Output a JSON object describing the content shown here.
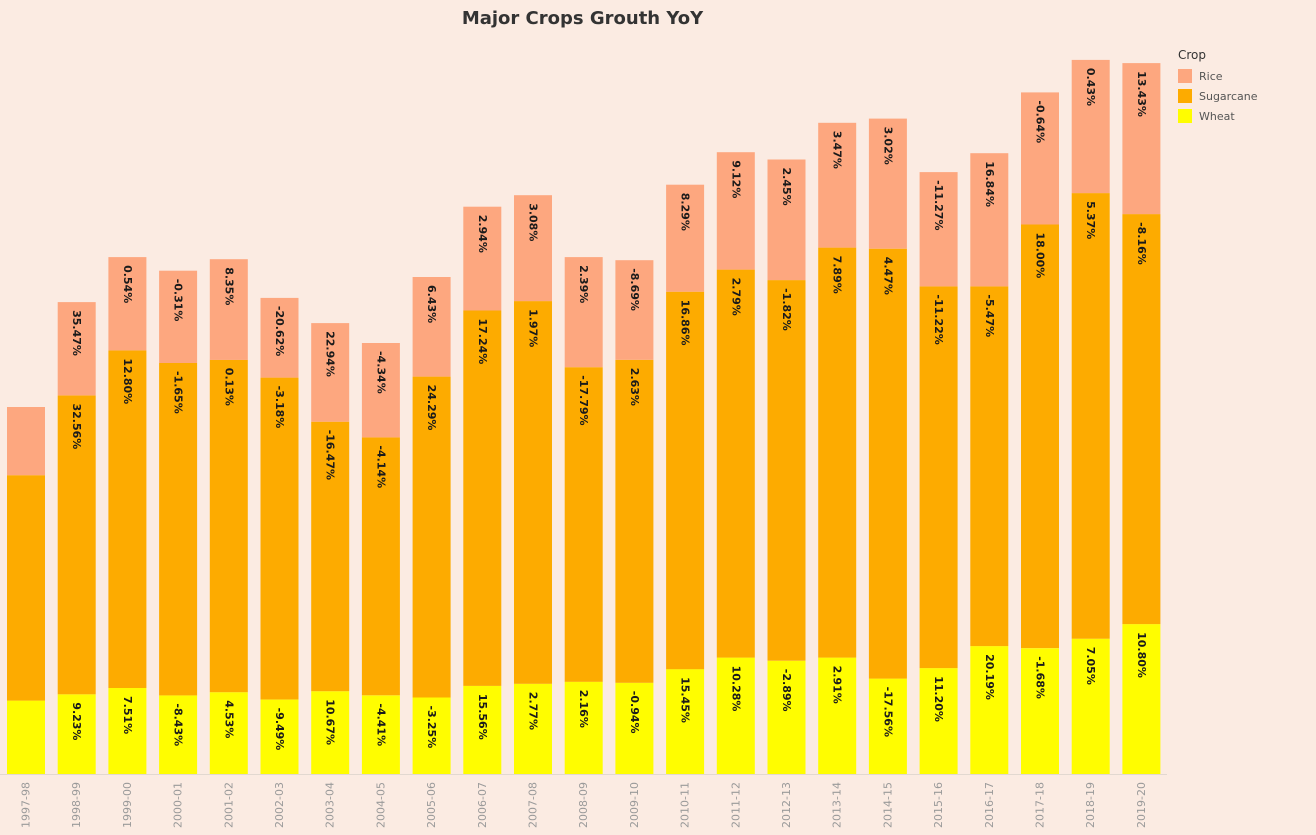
{
  "chart_data": {
    "type": "bar",
    "stacked": true,
    "title": "Major Crops  Grouth YoY",
    "xlabel": "",
    "ylabel": "",
    "grid": false,
    "legend": {
      "title": "Crop",
      "placement": "top-right",
      "entries": [
        {
          "name": "Rice",
          "color": "#fda77f"
        },
        {
          "name": "Sugarcane",
          "color": "#fdab00"
        },
        {
          "name": "Wheat",
          "color": "#fffd00"
        }
      ]
    },
    "ylim": [
      0,
      700
    ],
    "categories": [
      "1997-98",
      "1998-99",
      "1999-00",
      "2000-01",
      "2001-02",
      "2002-03",
      "2003-04",
      "2004-05",
      "2005-06",
      "2006-07",
      "2007-08",
      "2008-09",
      "2009-10",
      "2010-11",
      "2011-12",
      "2012-13",
      "2013-14",
      "2014-15",
      "2015-16",
      "2016-17",
      "2017-18",
      "2018-19",
      "2019-20"
    ],
    "series": [
      {
        "name": "Wheat",
        "color": "#fffd00",
        "values": [
          70,
          76,
          82,
          75,
          78,
          71,
          79,
          75,
          73,
          84,
          86,
          88,
          87,
          100,
          111,
          108,
          111,
          91,
          101,
          122,
          120,
          129,
          143
        ],
        "labels": [
          "",
          "9.23%",
          "7.51%",
          "-8.43%",
          "4.53%",
          "-9.49%",
          "10.67%",
          "-4.41%",
          "-3.25%",
          "15.56%",
          "2.77%",
          "2.16%",
          "-0.94%",
          "15.45%",
          "10.28%",
          "-2.89%",
          "2.91%",
          "-17.56%",
          "11.20%",
          "20.19%",
          "-1.68%",
          "7.05%",
          "10.80%"
        ]
      },
      {
        "name": "Sugarcane",
        "color": "#fdab00",
        "values": [
          215,
          285,
          322,
          317,
          317,
          307,
          257,
          246,
          306,
          358,
          365,
          300,
          308,
          360,
          370,
          363,
          391,
          410,
          364,
          343,
          404,
          425,
          391
        ],
        "labels": [
          "",
          "32.56%",
          "12.80%",
          "-1.65%",
          "0.13%",
          "-3.18%",
          "-16.47%",
          "-4.14%",
          "24.29%",
          "17.24%",
          "1.97%",
          "-17.79%",
          "2.63%",
          "16.86%",
          "2.79%",
          "-1.82%",
          "7.89%",
          "4.47%",
          "-11.22%",
          "-5.47%",
          "18.00%",
          "5.37%",
          "-8.16%"
        ]
      },
      {
        "name": "Rice",
        "color": "#fda77f",
        "values": [
          65,
          89,
          89,
          88,
          96,
          76,
          94,
          90,
          95,
          99,
          101,
          105,
          95,
          102,
          112,
          115,
          119,
          124,
          109,
          127,
          126,
          127,
          144
        ],
        "labels": [
          "",
          "35.47%",
          "0.54%",
          "-0.31%",
          "8.35%",
          "-20.62%",
          "22.94%",
          "-4.34%",
          "6.43%",
          "2.94%",
          "3.08%",
          "2.39%",
          "-8.69%",
          "8.29%",
          "9.12%",
          "2.45%",
          "3.47%",
          "3.02%",
          "-11.27%",
          "16.84%",
          "-0.64%",
          "0.43%",
          "13.43%"
        ]
      }
    ]
  }
}
